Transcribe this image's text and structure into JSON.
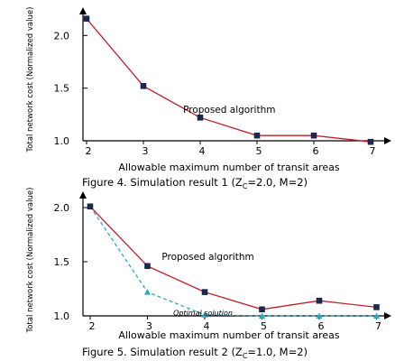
{
  "chart_data": [
    {
      "type": "line",
      "caption_prefix": "Figure 4. Simulation result 1 (Z",
      "caption_sub": "C",
      "caption_suffix": "=2.0, M=2)",
      "xlabel": "Allowable maximum number of transit areas",
      "ylabel": "Total network cost (Normalized value)",
      "x": [
        2,
        3,
        4,
        5,
        6,
        7
      ],
      "ylim": [
        1.0,
        2.2
      ],
      "yticks": [
        "1.0",
        "1.5",
        "2.0"
      ],
      "series": [
        {
          "name": "Proposed algorithm",
          "color": "#c0202a",
          "marker": "square",
          "dashed": false,
          "values": [
            2.16,
            1.52,
            1.22,
            1.05,
            1.05,
            0.99
          ]
        }
      ]
    },
    {
      "type": "line",
      "caption_prefix": "Figure 5. Simulation result 2 (Z",
      "caption_sub": "C",
      "caption_suffix": "=1.0, M=2)",
      "xlabel": "Allowable maximum number of transit areas",
      "ylabel": "Total network cost (Normalized value)",
      "x": [
        2,
        3,
        4,
        5,
        6,
        7
      ],
      "ylim": [
        1.0,
        2.1
      ],
      "yticks": [
        "1.0",
        "1.5",
        "2.0"
      ],
      "series": [
        {
          "name": "Proposed algorithm",
          "color": "#c0202a",
          "marker": "square",
          "dashed": false,
          "values": [
            2.01,
            1.46,
            1.22,
            1.06,
            1.14,
            1.08
          ]
        },
        {
          "name": "Optimal solution",
          "color": "#2aa8c8",
          "marker": "triangle",
          "dashed": true,
          "values": [
            2.01,
            1.22,
            1.01,
            1.0,
            1.0,
            1.0
          ]
        }
      ]
    }
  ]
}
